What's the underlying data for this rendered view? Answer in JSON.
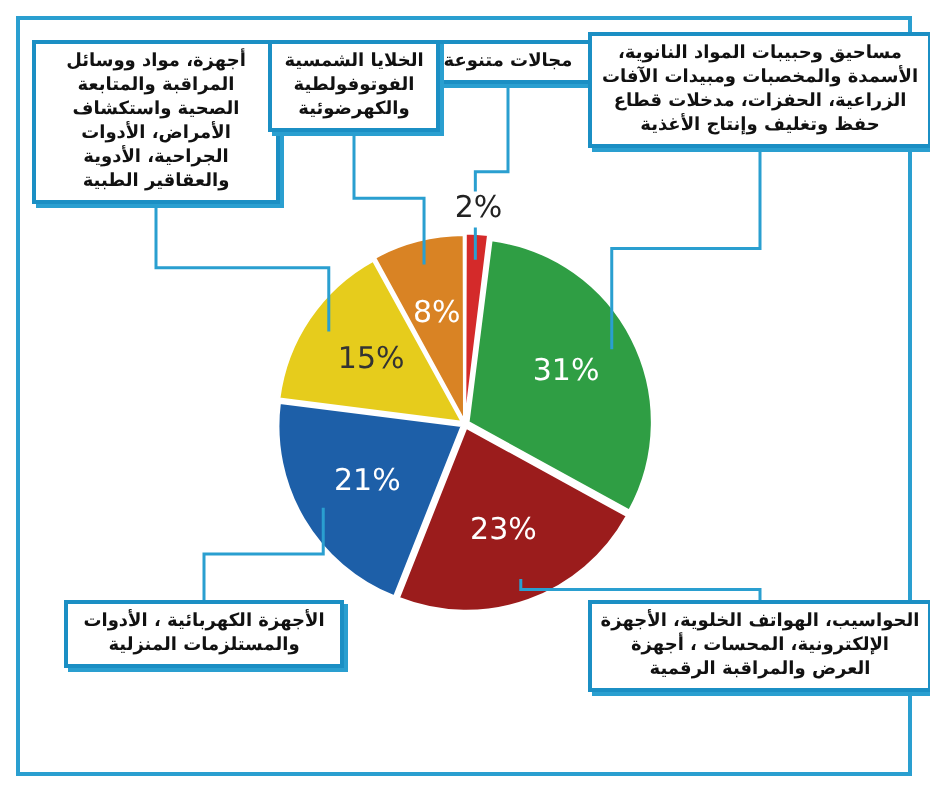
{
  "chart_data": {
    "type": "pie",
    "categories": [
      "مجالات متنوعة",
      "مساحيق وحبيبات المواد النانوية، الأسمدة والمخصبات ومبيدات الآفات الزراعية، الحفزات، مدخلات قطاع حفظ وتغليف وإنتاج الأغذية",
      "الحواسيب، الهواتف الخلوية، الأجهزة الإلكترونية، المحسات ، أجهزة العرض والمراقبة الرقمية",
      "الأجهزة الكهربائية ، الأدوات والمستلزمات المنزلية",
      "أجهزة، مواد ووسائل المراقبة والمتابعة الصحية واستكشاف الأمراض، الأدوات الجراحية، الأدوية والعقاقير الطبية",
      "الخلايا الشمسية الفوتوفولطية والكهرضوئية"
    ],
    "values": [
      2,
      31,
      23,
      21,
      15,
      8
    ],
    "colors": [
      "#d42a2a",
      "#2f9e44",
      "#9b1c1c",
      "#1d5fa8",
      "#e6cc1c",
      "#d98324"
    ],
    "value_labels": [
      "2%",
      "31%",
      "23%",
      "21%",
      "15%",
      "8%"
    ],
    "legend": false
  }
}
